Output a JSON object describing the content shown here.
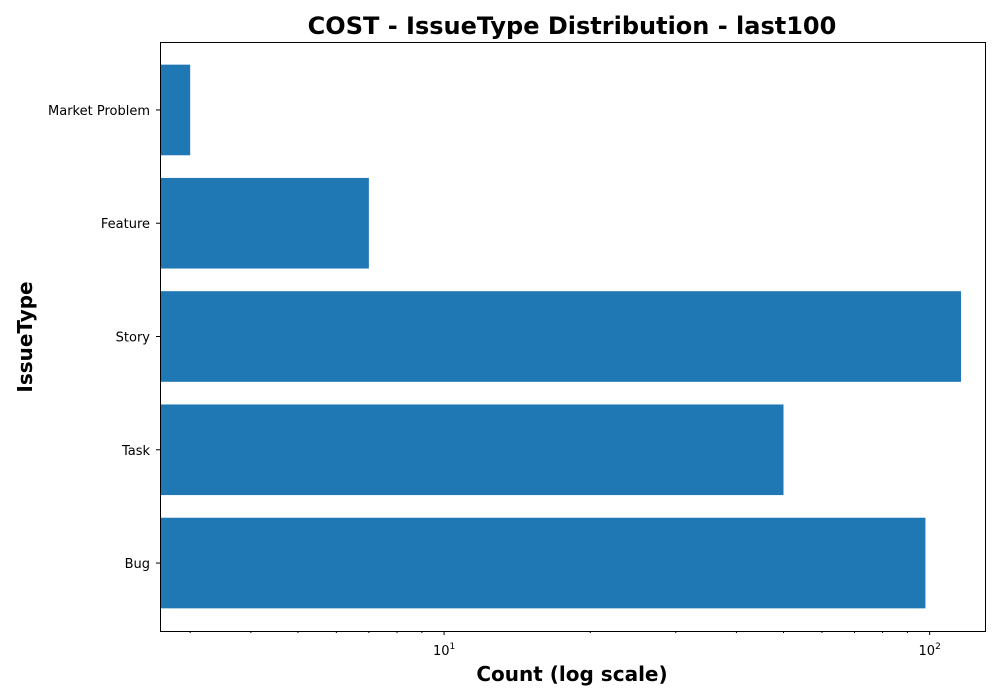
{
  "chart_data": {
    "type": "bar",
    "orientation": "horizontal",
    "title": "COST - IssueType Distribution - last100",
    "xlabel": "Count (log scale)",
    "ylabel": "IssueType",
    "x_scale": "log",
    "xlim": [
      2.6,
      130
    ],
    "x_ticks": [
      {
        "value": 10,
        "base": "10",
        "exp": "1"
      },
      {
        "value": 100,
        "base": "10",
        "exp": "2"
      }
    ],
    "categories": [
      "Bug",
      "Task",
      "Story",
      "Feature",
      "Market Problem"
    ],
    "values": [
      98,
      50,
      116,
      7,
      3
    ],
    "bar_color": "#1f77b4",
    "grid": false,
    "legend": "none"
  }
}
